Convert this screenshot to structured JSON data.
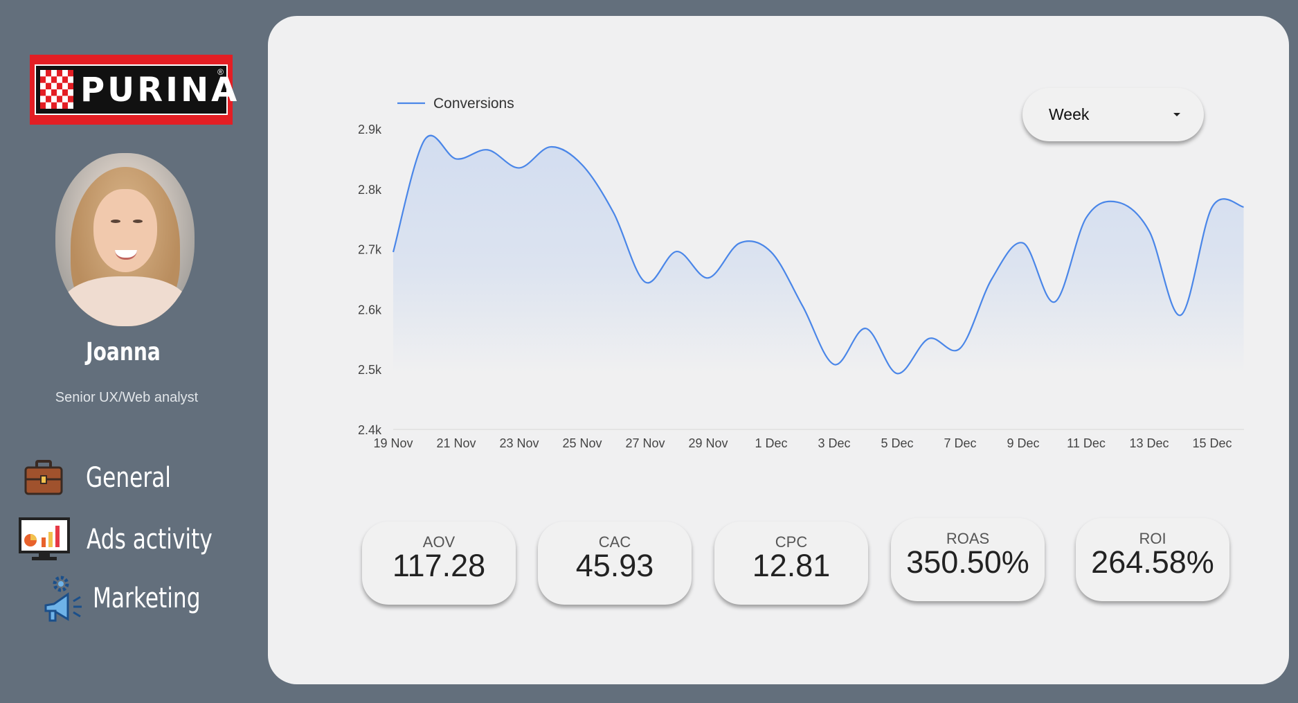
{
  "brand": {
    "name": "PURINA",
    "color": "#e31e24"
  },
  "user": {
    "name": "Joanna",
    "role": "Senior UX/Web analyst"
  },
  "nav": [
    {
      "label": "General",
      "icon": "briefcase-icon"
    },
    {
      "label": "Ads activity",
      "icon": "analytics-monitor-icon"
    },
    {
      "label": "Marketing",
      "icon": "megaphone-gear-icon"
    }
  ],
  "period_select": {
    "value": "Week"
  },
  "chart_data": {
    "type": "area",
    "series": [
      {
        "name": "Conversions",
        "color": "#4a86e8",
        "x": [
          "19 Nov",
          "20 Nov",
          "21 Nov",
          "22 Nov",
          "23 Nov",
          "24 Nov",
          "25 Nov",
          "26 Nov",
          "27 Nov",
          "28 Nov",
          "29 Nov",
          "30 Nov",
          "1 Dec",
          "2 Dec",
          "3 Dec",
          "4 Dec",
          "5 Dec",
          "6 Dec",
          "7 Dec",
          "8 Dec",
          "9 Dec",
          "10 Dec",
          "11 Dec",
          "12 Dec",
          "13 Dec",
          "14 Dec",
          "15 Dec",
          "16 Dec"
        ],
        "values": [
          2695,
          2882,
          2850,
          2865,
          2835,
          2870,
          2840,
          2760,
          2645,
          2696,
          2652,
          2710,
          2695,
          2605,
          2508,
          2568,
          2493,
          2551,
          2535,
          2650,
          2710,
          2612,
          2752,
          2778,
          2730,
          2590,
          2770,
          2770
        ]
      }
    ],
    "ylim": [
      2400,
      2900
    ],
    "yticks": [
      "2.4k",
      "2.5k",
      "2.6k",
      "2.7k",
      "2.8k",
      "2.9k"
    ],
    "xticks": [
      "19 Nov",
      "21 Nov",
      "23 Nov",
      "25 Nov",
      "27 Nov",
      "29 Nov",
      "1 Dec",
      "3 Dec",
      "5 Dec",
      "7 Dec",
      "9 Dec",
      "11 Dec",
      "13 Dec",
      "15 Dec"
    ],
    "legend": "top-left",
    "grid": false
  },
  "kpis": [
    {
      "label": "AOV",
      "value": "117.28"
    },
    {
      "label": "CAC",
      "value": "45.93"
    },
    {
      "label": "CPC",
      "value": "12.81"
    },
    {
      "label": "ROAS",
      "value": "350.50%"
    },
    {
      "label": "ROI",
      "value": "264.58%"
    }
  ]
}
